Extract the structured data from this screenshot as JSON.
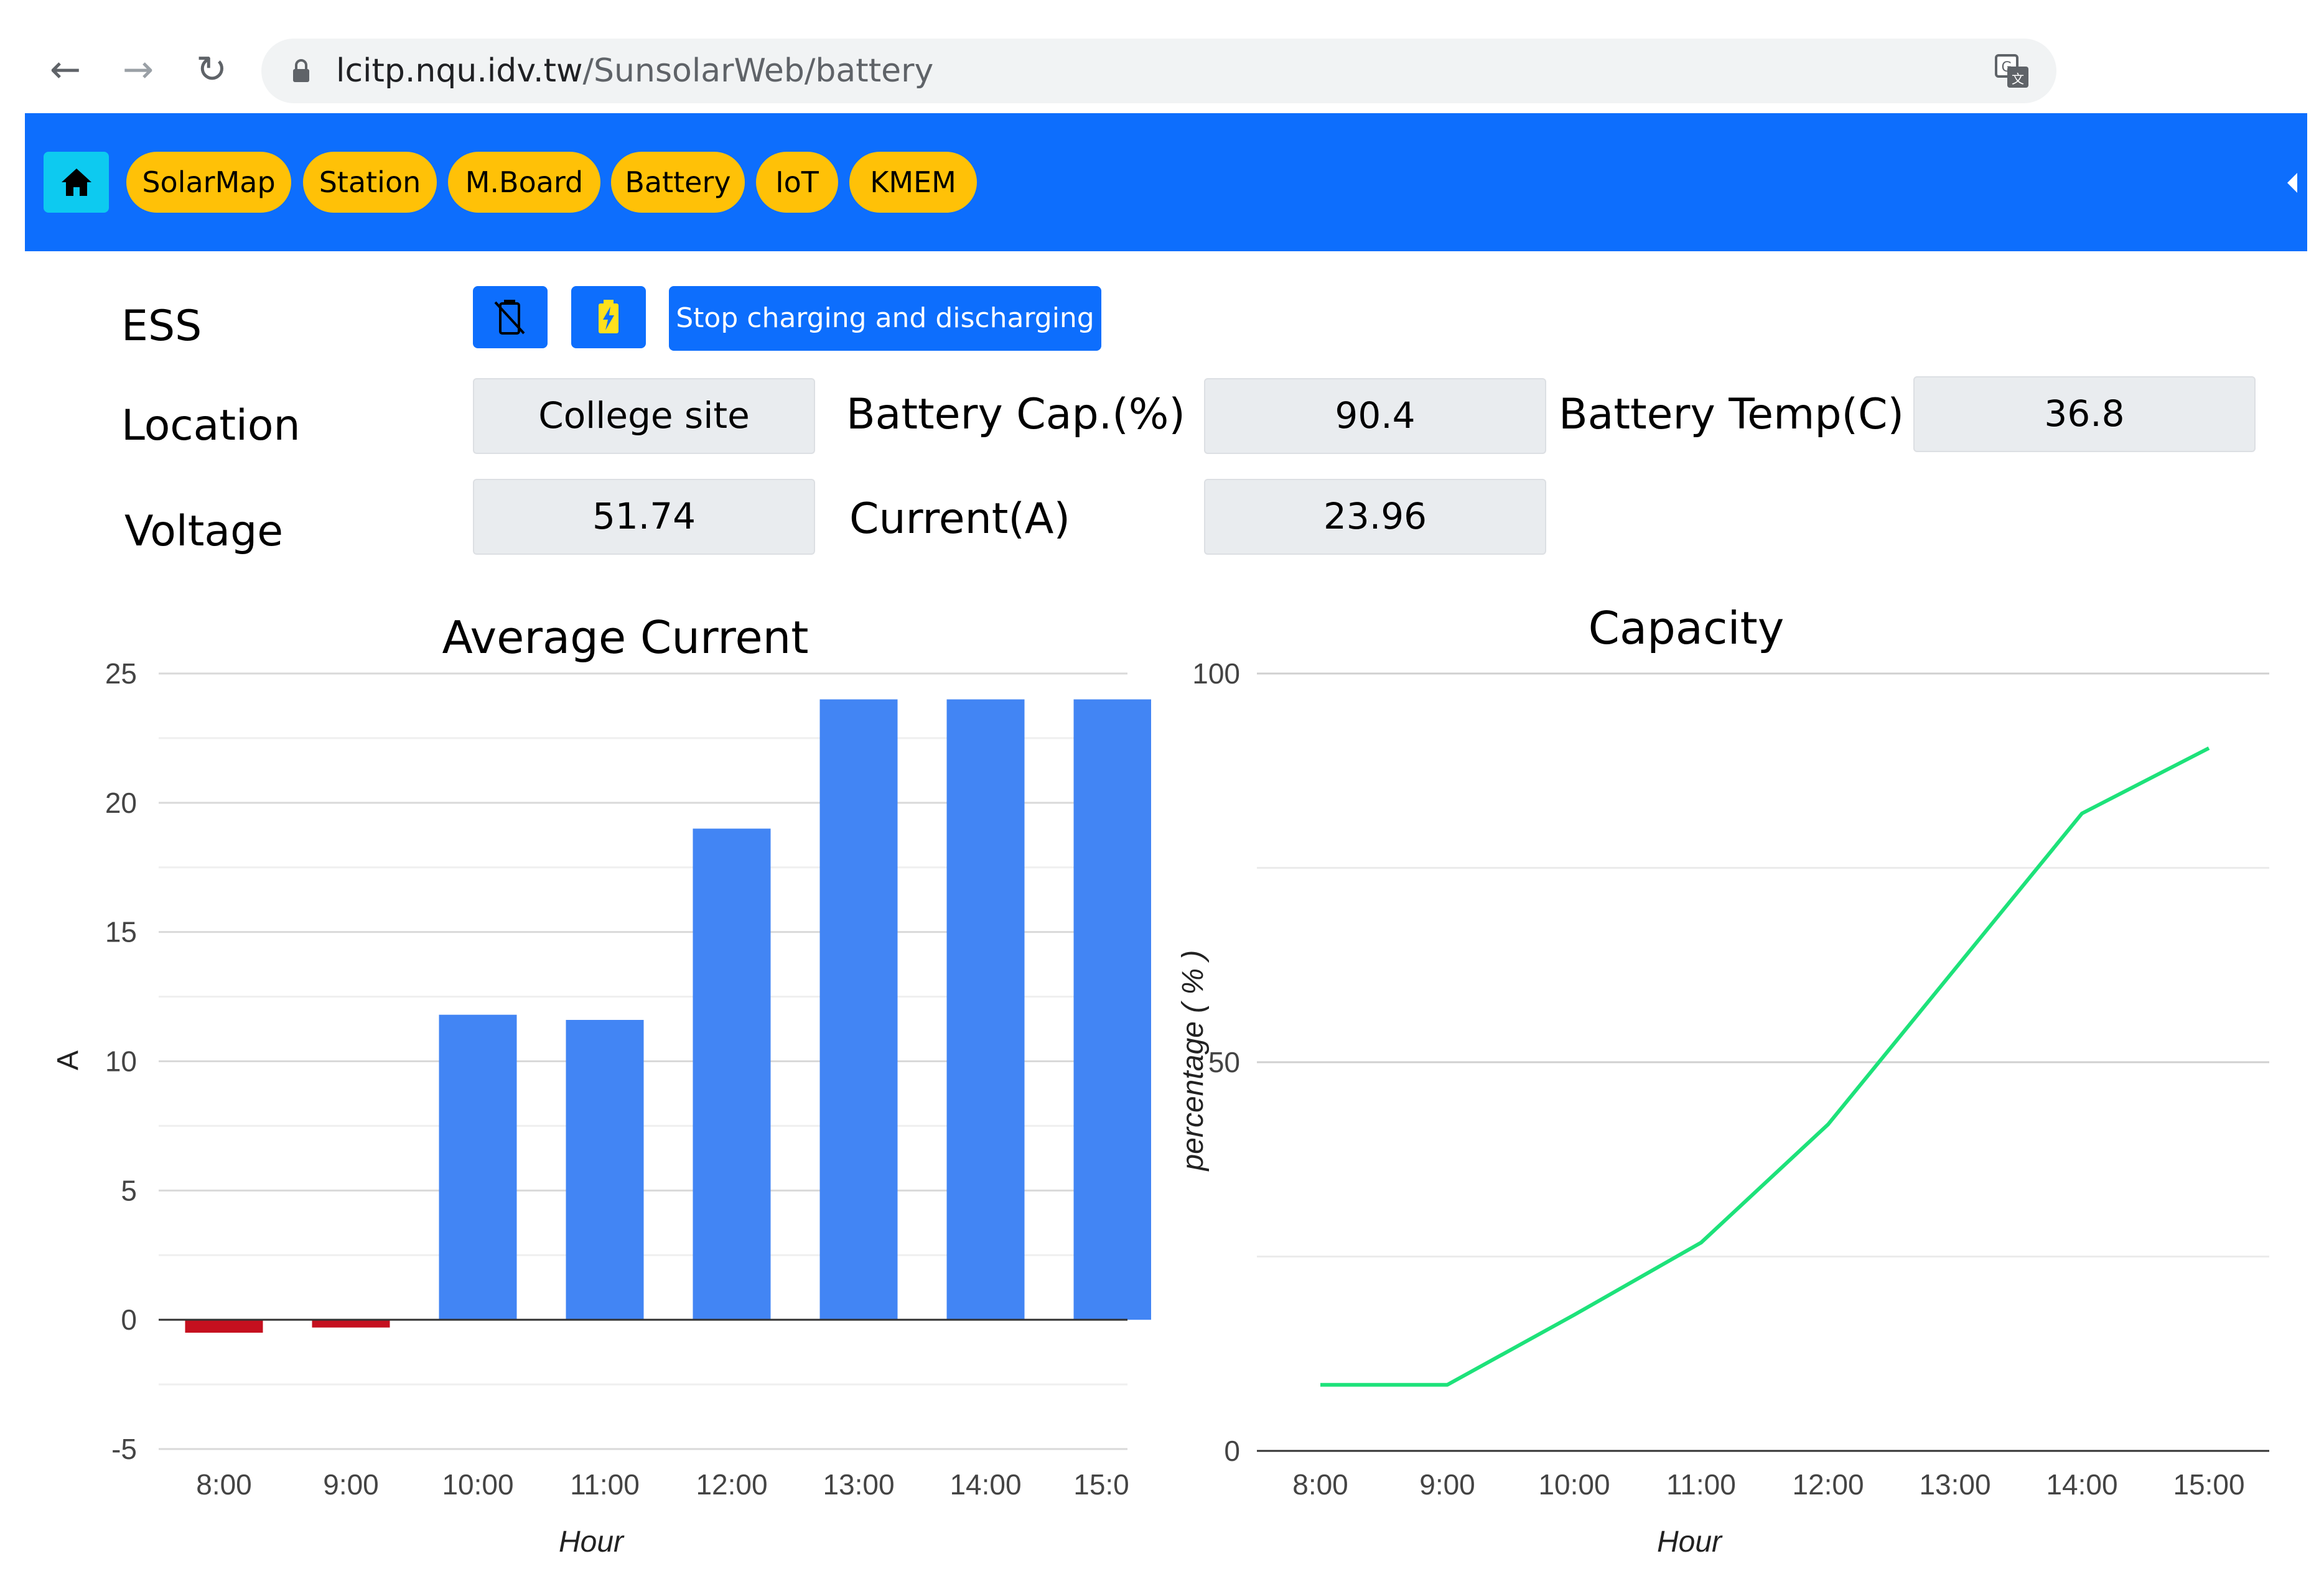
{
  "browser": {
    "url_host": "lcitp.nqu.idv.tw",
    "url_path": "/SunsolarWeb/battery"
  },
  "nav": {
    "items": [
      {
        "label": "SolarMap"
      },
      {
        "label": "Station"
      },
      {
        "label": "M.Board"
      },
      {
        "label": "Battery"
      },
      {
        "label": "IoT"
      },
      {
        "label": "KMEM"
      }
    ],
    "home_icon": "home-icon",
    "bar_color": "#0d6efd",
    "pill_color": "#ffc107"
  },
  "ess": {
    "label": "ESS",
    "stop_button": "Stop charging and discharging",
    "battery_off_icon": "battery-off-icon",
    "battery_charging_icon": "battery-charging-icon"
  },
  "fields": {
    "location_label": "Location",
    "location_value": "College site",
    "battery_cap_label": "Battery Cap.(%)",
    "battery_cap_value": "90.4",
    "battery_temp_label": "Battery Temp(C)",
    "battery_temp_value": "36.8",
    "voltage_label": "Voltage",
    "voltage_value": "51.74",
    "current_label": "Current(A)",
    "current_value": "23.96"
  },
  "chart_data": [
    {
      "type": "bar",
      "title": "Average Current",
      "xlabel": "Hour",
      "ylabel": "A",
      "categories": [
        "8:00",
        "9:00",
        "10:00",
        "11:00",
        "12:00",
        "13:00",
        "14:00",
        "15:0"
      ],
      "values": [
        -0.5,
        -0.3,
        11.8,
        11.6,
        19.0,
        24.0,
        24.0,
        24.0
      ],
      "ylim": [
        -5,
        25
      ],
      "yticks": [
        25,
        20,
        15,
        10,
        5,
        0,
        -5
      ],
      "positive_color": "#4285f4",
      "negative_color": "#c5101f",
      "grid": true
    },
    {
      "type": "line",
      "title": "Capacity",
      "xlabel": "Hour",
      "ylabel": "percentage ( % )",
      "categories": [
        "8:00",
        "9:00",
        "10:00",
        "11:00",
        "12:00",
        "13:00",
        "14:00",
        "15:00"
      ],
      "values": [
        8.5,
        8.5,
        17.5,
        26.8,
        42.0,
        62.0,
        82.0,
        90.4
      ],
      "ylim": [
        0,
        100
      ],
      "yticks": [
        100,
        50,
        0
      ],
      "color": "#1de27a",
      "grid": true
    }
  ]
}
